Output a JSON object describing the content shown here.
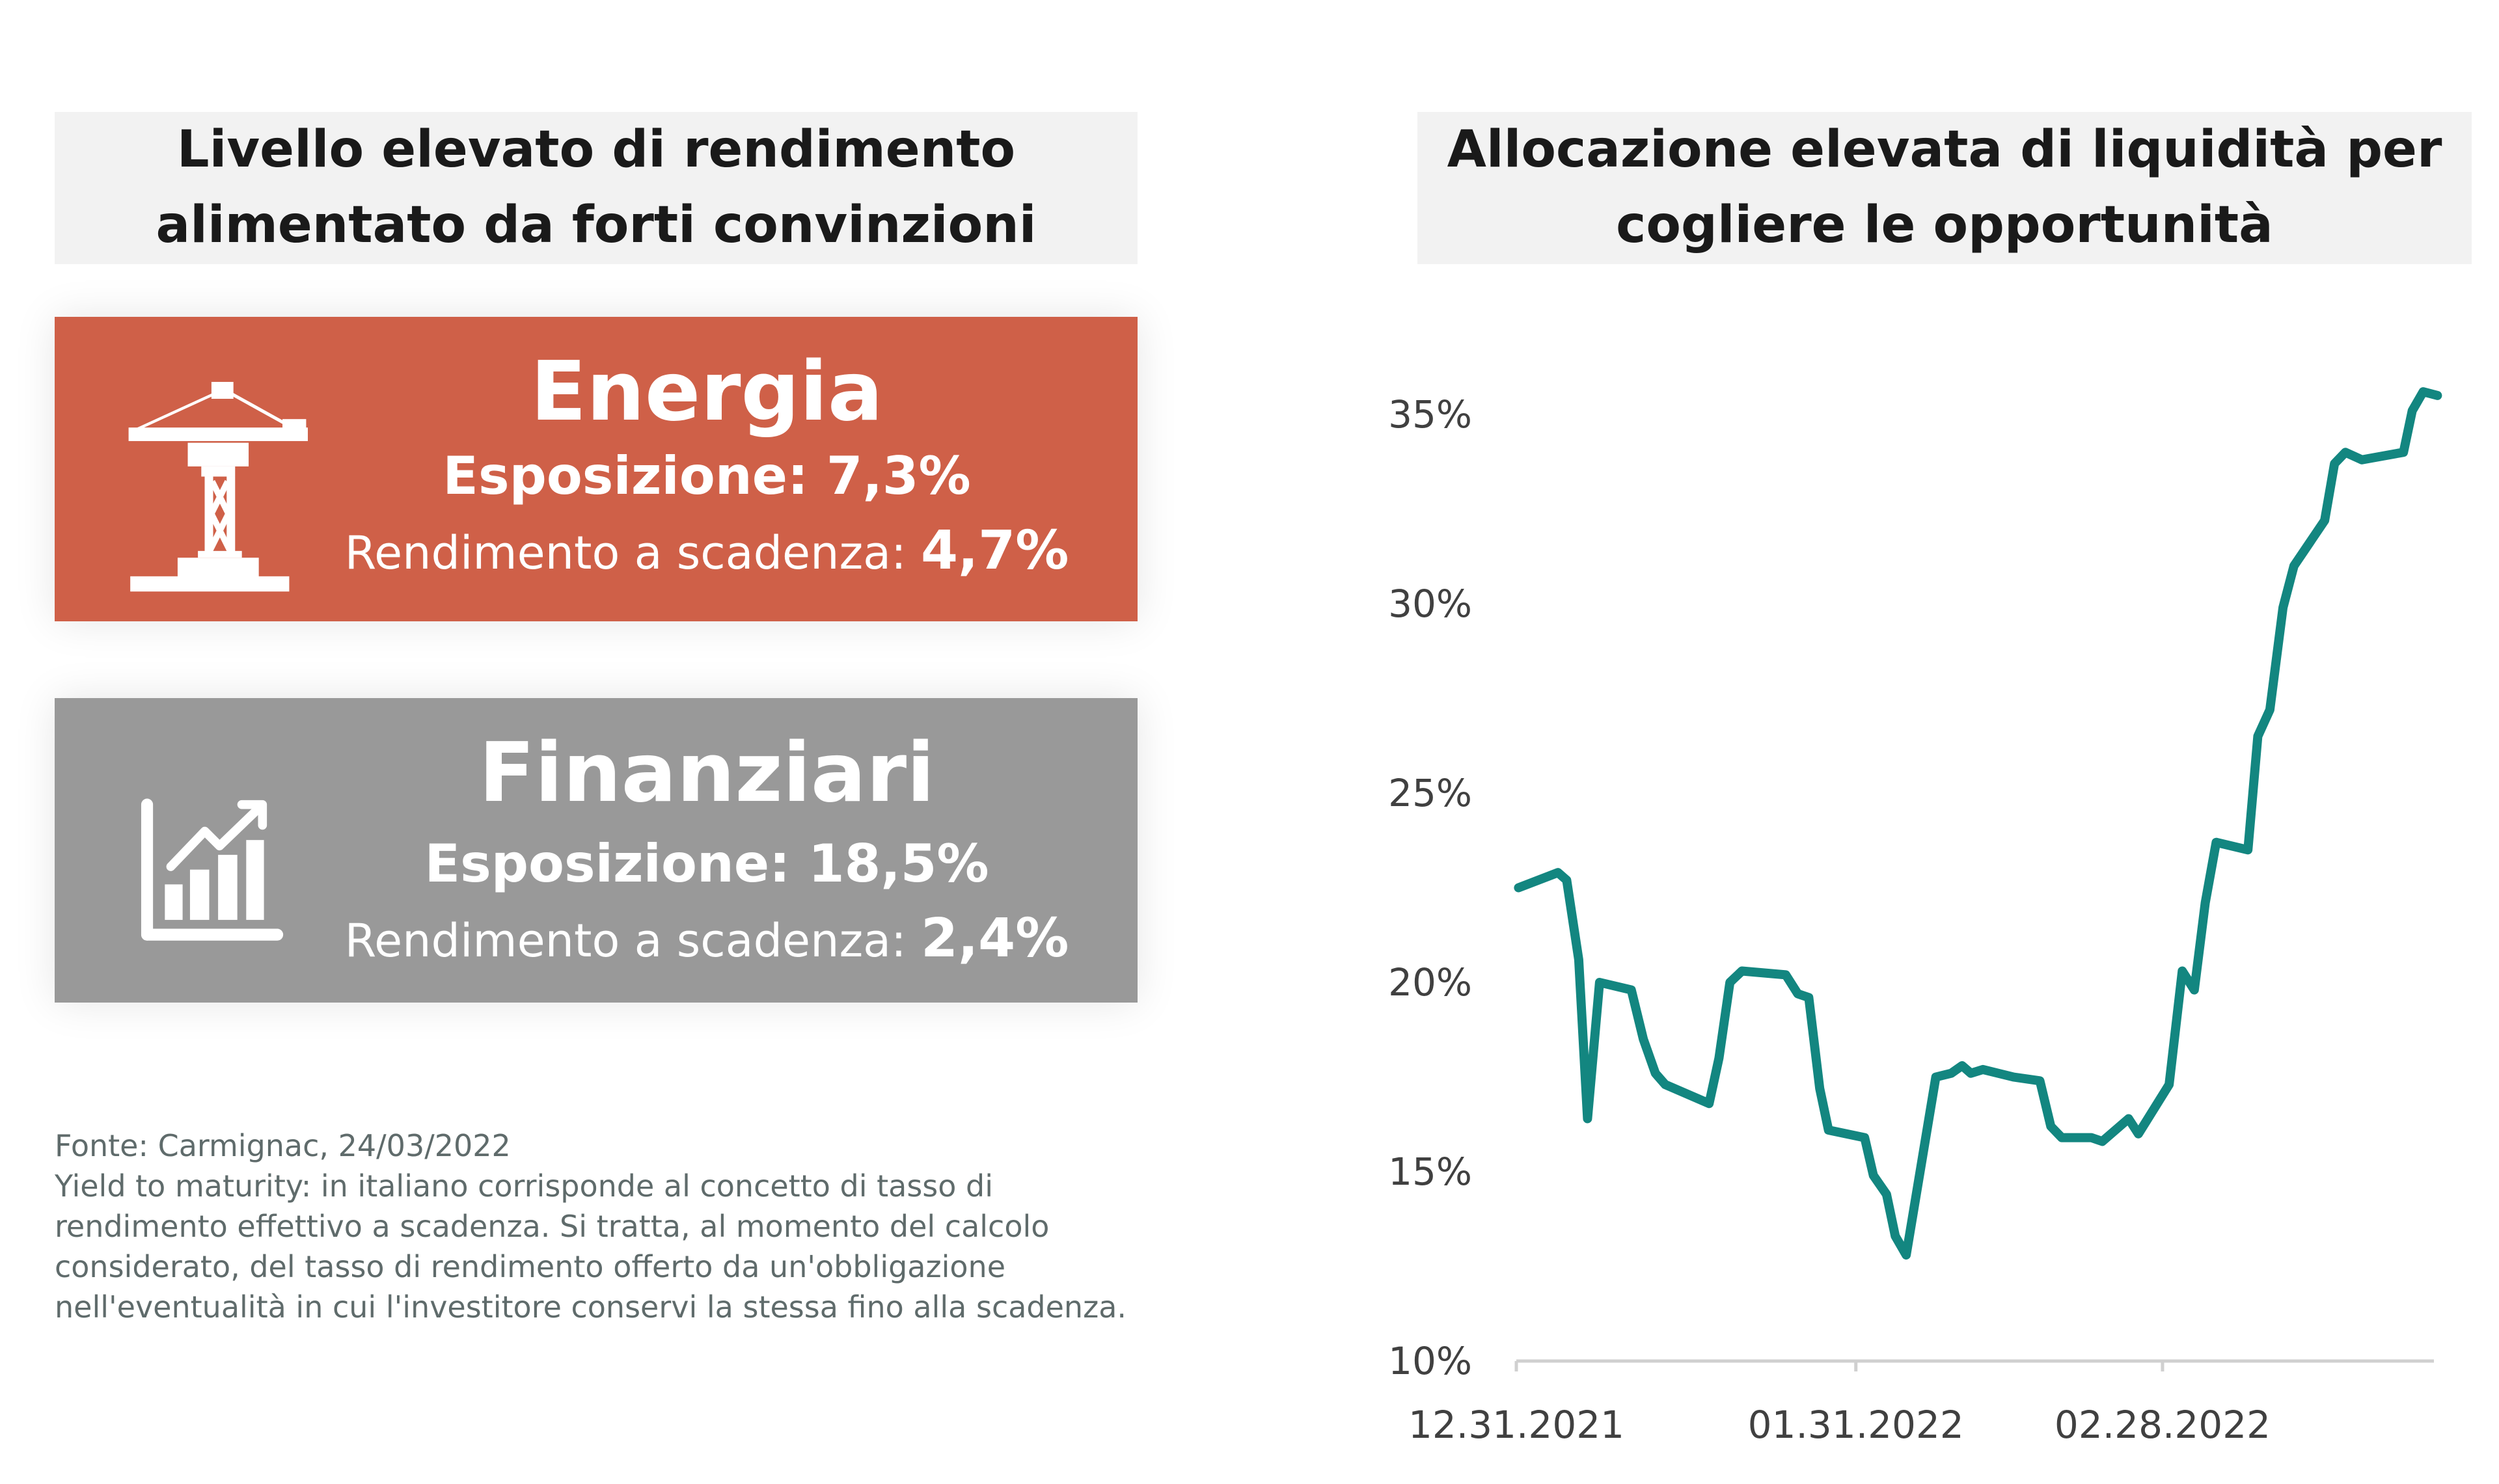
{
  "left": {
    "title_line1": "Livello elevato di rendimento",
    "title_line2": "alimentato da forti convinzioni",
    "cards": [
      {
        "name": "Energia",
        "exposure_label": "Esposizione: 7,3%",
        "ytm_label": "Rendimento a scadenza:",
        "ytm_value": "4,7%",
        "color": "#CF6048",
        "icon": "crane-icon"
      },
      {
        "name": "Finanziari",
        "exposure_label": "Esposizione: 18,5%",
        "ytm_label": "Rendimento a scadenza:",
        "ytm_value": "2,4%",
        "color": "#999999",
        "icon": "growth-chart-icon"
      }
    ],
    "footnote_source": "Fonte: Carmignac, 24/03/2022",
    "footnote_lines": [
      "Yield to maturity: in italiano corrisponde al concetto di tasso di",
      "rendimento effettivo a scadenza. Si tratta, al momento del calcolo",
      "considerato, del tasso di rendimento offerto da un'obbligazione",
      "nell'eventualità in cui l'investitore conservi la stessa fino alla scadenza."
    ]
  },
  "chart_data": {
    "type": "line",
    "title_line1": "Allocazione elevata di liquidità per",
    "title_line2": "cogliere le opportunità",
    "xlabel": "",
    "ylabel": "",
    "x_unit": "days since 12.31.2021",
    "xticks": [
      {
        "day": 0,
        "label": "12.31.2021"
      },
      {
        "day": 31,
        "label": "01.31.2022"
      },
      {
        "day": 59,
        "label": "02.28.2022"
      }
    ],
    "yticks": [
      {
        "value": 10,
        "label": "10%"
      },
      {
        "value": 15,
        "label": "15%"
      },
      {
        "value": 20,
        "label": "20%"
      },
      {
        "value": 25,
        "label": "25%"
      },
      {
        "value": 30,
        "label": "30%"
      },
      {
        "value": 35,
        "label": "35%"
      }
    ],
    "ylim": [
      10,
      36
    ],
    "xlim": [
      0,
      84
    ],
    "grid": false,
    "color": "#138680",
    "series": [
      {
        "name": "Liquidità",
        "points": [
          [
            0.2,
            22.5
          ],
          [
            3.8,
            22.9
          ],
          [
            4.6,
            22.7
          ],
          [
            5.7,
            20.6
          ],
          [
            6.5,
            16.4
          ],
          [
            7.6,
            20.0
          ],
          [
            10.5,
            19.8
          ],
          [
            11.6,
            18.5
          ],
          [
            12.7,
            17.6
          ],
          [
            13.6,
            17.3
          ],
          [
            17.6,
            16.8
          ],
          [
            18.5,
            18.0
          ],
          [
            19.5,
            20.0
          ],
          [
            20.6,
            20.3
          ],
          [
            24.6,
            20.2
          ],
          [
            25.7,
            19.7
          ],
          [
            26.7,
            19.6
          ],
          [
            27.7,
            17.2
          ],
          [
            28.5,
            16.1
          ],
          [
            31.8,
            15.9
          ],
          [
            32.6,
            14.9
          ],
          [
            33.8,
            14.4
          ],
          [
            34.6,
            13.3
          ],
          [
            35.6,
            12.8
          ],
          [
            38.3,
            17.5
          ],
          [
            39.7,
            17.6
          ],
          [
            40.7,
            17.8
          ],
          [
            41.5,
            17.6
          ],
          [
            42.6,
            17.7
          ],
          [
            45.4,
            17.5
          ],
          [
            47.8,
            17.4
          ],
          [
            48.8,
            16.2
          ],
          [
            49.8,
            15.9
          ],
          [
            52.5,
            15.9
          ],
          [
            53.5,
            15.8
          ],
          [
            55.9,
            16.4
          ],
          [
            56.8,
            16.0
          ],
          [
            59.6,
            17.3
          ],
          [
            60.8,
            20.3
          ],
          [
            61.9,
            19.8
          ],
          [
            62.9,
            22.1
          ],
          [
            63.9,
            23.7
          ],
          [
            66.8,
            23.5
          ],
          [
            67.7,
            26.5
          ],
          [
            68.8,
            27.2
          ],
          [
            70.0,
            29.9
          ],
          [
            71.0,
            31.0
          ],
          [
            73.8,
            32.2
          ],
          [
            74.7,
            33.7
          ],
          [
            75.7,
            34.0
          ],
          [
            77.2,
            33.8
          ],
          [
            81.0,
            34.0
          ],
          [
            81.8,
            35.1
          ],
          [
            82.8,
            35.6
          ],
          [
            84.1,
            35.5
          ]
        ]
      }
    ]
  }
}
